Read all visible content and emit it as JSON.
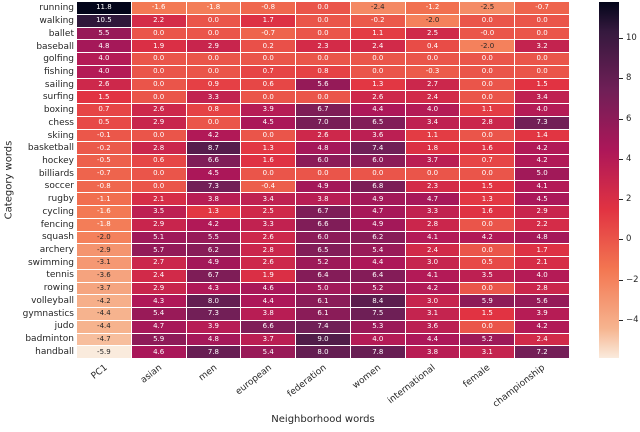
{
  "chart_data": {
    "type": "heatmap",
    "xlabel": "Neighborhood words",
    "ylabel": "Category words",
    "columns": [
      "PC1",
      "asian",
      "men",
      "european",
      "federation",
      "women",
      "international",
      "female",
      "championship"
    ],
    "rows": [
      "running",
      "walking",
      "ballet",
      "baseball",
      "golfing",
      "fishing",
      "sailing",
      "surfing",
      "boxing",
      "chess",
      "skiing",
      "basketball",
      "hockey",
      "billiards",
      "soccer",
      "rugby",
      "cycling",
      "fencing",
      "squash",
      "archery",
      "swimming",
      "tennis",
      "rowing",
      "volleyball",
      "gymnastics",
      "judo",
      "badminton",
      "handball"
    ],
    "values": [
      [
        11.8,
        -1.6,
        -1.8,
        -0.8,
        0.0,
        -2.4,
        -1.2,
        -2.5,
        -0.7
      ],
      [
        10.5,
        2.2,
        0.0,
        1.7,
        0.0,
        -0.2,
        -2.0,
        0.0,
        0.0
      ],
      [
        5.5,
        0.0,
        0.0,
        -0.7,
        0.0,
        1.1,
        2.5,
        -0.0,
        0.0
      ],
      [
        4.8,
        1.9,
        2.9,
        0.2,
        2.3,
        2.4,
        0.4,
        -2.0,
        3.2
      ],
      [
        4.0,
        0.0,
        0.0,
        0.0,
        0.0,
        0.0,
        0.0,
        0.0,
        0.0
      ],
      [
        4.0,
        0.0,
        0.0,
        0.7,
        0.8,
        0.0,
        -0.3,
        0.0,
        0.0
      ],
      [
        2.6,
        0.0,
        0.9,
        0.6,
        5.6,
        1.3,
        2.7,
        0.0,
        1.5
      ],
      [
        1.5,
        0.0,
        3.3,
        0.0,
        0.0,
        2.6,
        2.4,
        0.0,
        3.4
      ],
      [
        0.7,
        2.6,
        0.8,
        3.9,
        6.7,
        4.4,
        4.0,
        1.1,
        4.0
      ],
      [
        0.5,
        2.9,
        0.0,
        4.5,
        7.0,
        6.5,
        3.4,
        2.8,
        7.3
      ],
      [
        -0.1,
        0.0,
        4.2,
        0.0,
        2.6,
        3.6,
        1.1,
        0.0,
        1.4
      ],
      [
        -0.2,
        2.8,
        8.7,
        1.3,
        4.8,
        7.4,
        1.8,
        1.6,
        4.2
      ],
      [
        -0.5,
        0.6,
        6.6,
        1.6,
        6.0,
        6.0,
        3.7,
        0.7,
        4.2
      ],
      [
        -0.7,
        0.0,
        4.5,
        0.0,
        0.0,
        0.0,
        0.0,
        0.0,
        5.0
      ],
      [
        -0.8,
        0.0,
        7.3,
        -0.4,
        4.9,
        6.8,
        2.3,
        1.5,
        4.1
      ],
      [
        -1.1,
        2.1,
        3.8,
        3.4,
        3.8,
        4.9,
        4.7,
        1.3,
        4.5
      ],
      [
        -1.6,
        3.5,
        1.3,
        2.5,
        6.7,
        4.7,
        3.3,
        1.6,
        2.9
      ],
      [
        -1.8,
        2.9,
        4.2,
        3.3,
        6.6,
        4.9,
        2.8,
        0.0,
        2.2
      ],
      [
        -2.0,
        5.1,
        5.5,
        2.6,
        6.0,
        6.2,
        4.1,
        4.2,
        4.8
      ],
      [
        -2.9,
        5.7,
        6.2,
        2.8,
        6.5,
        5.4,
        2.4,
        0.0,
        1.7
      ],
      [
        -3.1,
        2.7,
        4.9,
        2.6,
        5.2,
        4.4,
        3.0,
        0.5,
        2.1
      ],
      [
        -3.6,
        2.4,
        6.7,
        1.9,
        6.4,
        6.4,
        4.1,
        3.5,
        4.0
      ],
      [
        -3.7,
        2.9,
        4.3,
        4.6,
        5.0,
        5.2,
        4.2,
        0.0,
        2.8
      ],
      [
        -4.2,
        4.3,
        8.0,
        4.4,
        6.1,
        8.4,
        3.0,
        5.9,
        5.6
      ],
      [
        -4.4,
        5.4,
        7.3,
        3.8,
        6.1,
        7.5,
        3.1,
        1.5,
        3.9
      ],
      [
        -4.4,
        4.7,
        3.9,
        6.6,
        7.4,
        5.3,
        3.6,
        0.0,
        4.2
      ],
      [
        -4.7,
        5.9,
        4.8,
        3.7,
        9.0,
        4.0,
        4.4,
        5.2,
        2.4
      ],
      [
        -5.9,
        4.6,
        7.8,
        5.4,
        8.0,
        7.8,
        3.8,
        3.1,
        7.2
      ]
    ],
    "vmin": -5.9,
    "vmax": 11.8,
    "colormap": "rocket_r",
    "colormap_stops": [
      {
        "pos": 0.0,
        "color": "#03051a"
      },
      {
        "pos": 0.083,
        "color": "#35193e"
      },
      {
        "pos": 0.25,
        "color": "#701f57"
      },
      {
        "pos": 0.417,
        "color": "#ad1759"
      },
      {
        "pos": 0.583,
        "color": "#e13342"
      },
      {
        "pos": 0.75,
        "color": "#f37651"
      },
      {
        "pos": 0.917,
        "color": "#f6b48f"
      },
      {
        "pos": 1.0,
        "color": "#faebdd"
      }
    ],
    "colorbar_ticks": [
      {
        "value": 10,
        "label": "10"
      },
      {
        "value": 8,
        "label": "8"
      },
      {
        "value": 6,
        "label": "6"
      },
      {
        "value": 4,
        "label": "4"
      },
      {
        "value": 2,
        "label": "2"
      },
      {
        "value": 0,
        "label": "0"
      },
      {
        "value": -2,
        "label": "−2"
      },
      {
        "value": -4,
        "label": "−4"
      }
    ],
    "annotation_text_colors": {
      "light": "#ffffff",
      "dark": "#262626"
    },
    "grid_line_color": "#ffffff",
    "legend_position": "right",
    "grid_on": false
  }
}
